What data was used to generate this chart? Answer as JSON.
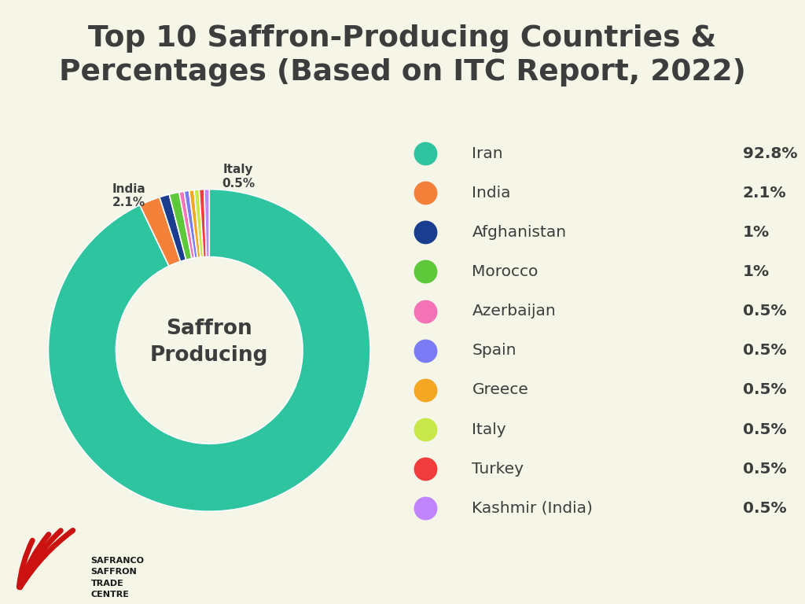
{
  "title": "Top 10 Saffron-Producing Countries &\nPercentages (Based on ITC Report, 2022)",
  "background_color": "#f5f5e8",
  "center_text": "Saffron\nProducing",
  "countries": [
    "Iran",
    "India",
    "Afghanistan",
    "Morocco",
    "Azerbaijan",
    "Spain",
    "Greece",
    "Italy",
    "Turkey",
    "Kashmir (India)"
  ],
  "percentages": [
    92.8,
    2.1,
    1.0,
    1.0,
    0.5,
    0.5,
    0.5,
    0.5,
    0.5,
    0.5
  ],
  "labels_display": [
    "92.8%",
    "2.1%",
    "1%",
    "1%",
    "0.5%",
    "0.5%",
    "0.5%",
    "0.5%",
    "0.5%",
    "0.5%"
  ],
  "colors": [
    "#2ec4a0",
    "#f4813a",
    "#1a3d8f",
    "#5dc83a",
    "#f472b6",
    "#7b7bf5",
    "#f5a623",
    "#c8e84a",
    "#f03c3c",
    "#c084fc"
  ],
  "text_color": "#3d3d3d",
  "iran_label": "Iran\n92.8%",
  "india_label": "India\n2.1%",
  "italy_label": "Italy\n0.5%"
}
